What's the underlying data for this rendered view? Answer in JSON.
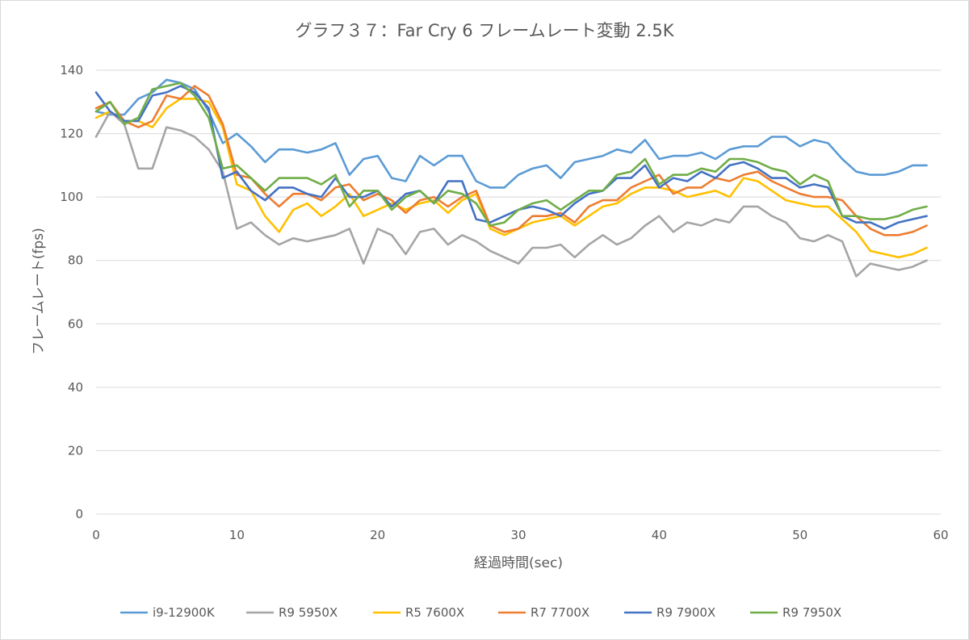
{
  "chart_data": {
    "type": "line",
    "title": "グラフ３７：Far Cry 6 フレームレート変動 2.5K",
    "xlabel": "経過時間(sec)",
    "ylabel": "フレームレート(fps)",
    "xlim": [
      0,
      60
    ],
    "ylim": [
      0,
      140
    ],
    "xticks": [
      "0",
      "10",
      "20",
      "30",
      "40",
      "50",
      "60"
    ],
    "yticks": [
      "0",
      "20",
      "40",
      "60",
      "80",
      "100",
      "120",
      "140"
    ],
    "grid": "horizontal",
    "legend_position": "bottom",
    "x": [
      0,
      1,
      2,
      3,
      4,
      5,
      6,
      7,
      8,
      9,
      10,
      11,
      12,
      13,
      14,
      15,
      16,
      17,
      18,
      19,
      20,
      21,
      22,
      23,
      24,
      25,
      26,
      27,
      28,
      29,
      30,
      31,
      32,
      33,
      34,
      35,
      36,
      37,
      38,
      39,
      40,
      41,
      42,
      43,
      44,
      45,
      46,
      47,
      48,
      49,
      50,
      51,
      52,
      53,
      54,
      55,
      56,
      57,
      58,
      59
    ],
    "series": [
      {
        "name": "i9-12900K",
        "color": "#5b9bd5",
        "values": [
          127,
          126,
          126,
          131,
          133,
          137,
          136,
          134,
          127,
          117,
          120,
          116,
          111,
          115,
          115,
          114,
          115,
          117,
          107,
          112,
          113,
          106,
          105,
          113,
          110,
          113,
          113,
          105,
          103,
          103,
          107,
          109,
          110,
          106,
          111,
          112,
          113,
          115,
          114,
          118,
          112,
          113,
          113,
          114,
          112,
          115,
          116,
          116,
          119,
          119,
          116,
          118,
          117,
          112,
          108,
          107,
          107,
          108,
          110,
          110
        ]
      },
      {
        "name": "R9 5950X",
        "color": "#a5a5a5",
        "values": [
          119,
          127,
          123,
          109,
          109,
          122,
          121,
          119,
          115,
          108,
          90,
          92,
          88,
          85,
          87,
          86,
          87,
          88,
          90,
          79,
          90,
          88,
          82,
          89,
          90,
          85,
          88,
          86,
          83,
          81,
          79,
          84,
          84,
          85,
          81,
          85,
          88,
          85,
          87,
          91,
          94,
          89,
          92,
          91,
          93,
          92,
          97,
          97,
          94,
          92,
          87,
          86,
          88,
          86,
          75,
          79,
          78,
          77,
          78,
          80
        ]
      },
      {
        "name": "R5 7600X",
        "color": "#ffc000",
        "values": [
          125,
          127,
          124,
          124,
          122,
          128,
          131,
          131,
          130,
          122,
          104,
          102,
          94,
          89,
          96,
          98,
          94,
          97,
          101,
          94,
          96,
          98,
          96,
          98,
          99,
          95,
          99,
          101,
          90,
          88,
          90,
          92,
          93,
          94,
          91,
          94,
          97,
          98,
          101,
          103,
          103,
          102,
          100,
          101,
          102,
          100,
          106,
          105,
          102,
          99,
          98,
          97,
          97,
          93,
          89,
          83,
          82,
          81,
          82,
          84
        ]
      },
      {
        "name": "R7 7700X",
        "color": "#ed7d31",
        "values": [
          128,
          130,
          124,
          122,
          124,
          132,
          131,
          135,
          132,
          123,
          107,
          106,
          101,
          97,
          101,
          101,
          99,
          103,
          104,
          99,
          101,
          99,
          95,
          99,
          100,
          97,
          100,
          102,
          91,
          89,
          90,
          94,
          94,
          95,
          92,
          97,
          99,
          99,
          103,
          105,
          107,
          101,
          103,
          103,
          106,
          105,
          107,
          108,
          105,
          103,
          101,
          100,
          100,
          99,
          94,
          90,
          88,
          88,
          89,
          91
        ]
      },
      {
        "name": "R9 7900X",
        "color": "#4472c4",
        "values": [
          133,
          127,
          124,
          124,
          132,
          133,
          135,
          133,
          128,
          106,
          108,
          102,
          99,
          103,
          103,
          101,
          100,
          106,
          100,
          100,
          102,
          97,
          101,
          102,
          98,
          105,
          105,
          93,
          92,
          94,
          96,
          97,
          96,
          94,
          98,
          101,
          102,
          106,
          106,
          110,
          103,
          106,
          105,
          108,
          106,
          110,
          111,
          109,
          106,
          106,
          103,
          104,
          103,
          94,
          92,
          92,
          90,
          92,
          93,
          94
        ]
      },
      {
        "name": "R9 7950X",
        "color": "#70ad47",
        "values": [
          127,
          130,
          123,
          125,
          134,
          135,
          136,
          132,
          125,
          109,
          110,
          106,
          102,
          106,
          106,
          106,
          104,
          107,
          97,
          102,
          102,
          96,
          100,
          102,
          98,
          102,
          101,
          98,
          91,
          92,
          96,
          98,
          99,
          96,
          99,
          102,
          102,
          107,
          108,
          112,
          104,
          107,
          107,
          109,
          108,
          112,
          112,
          111,
          109,
          108,
          104,
          107,
          105,
          94,
          94,
          93,
          93,
          94,
          96,
          97
        ]
      }
    ]
  }
}
